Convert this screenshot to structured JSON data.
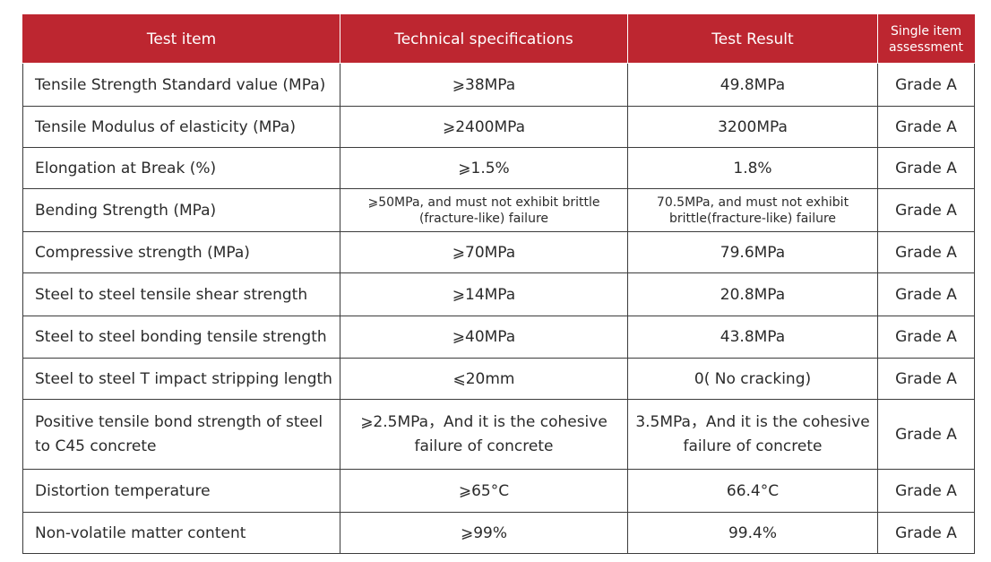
{
  "headers": {
    "test_item": "Test item",
    "technical_specifications": "Technical specifications",
    "test_result": "Test Result",
    "single_item_assessment_line1": "Single item",
    "single_item_assessment_line2": "assessment"
  },
  "rows": [
    {
      "item": "Tensile Strength Standard value (MPa)",
      "spec": "⩾38MPa",
      "result": "49.8MPa",
      "grade": "Grade A"
    },
    {
      "item": "Tensile Modulus of elasticity (MPa)",
      "spec": "⩾2400MPa",
      "result": "3200MPa",
      "grade": "Grade A"
    },
    {
      "item": "Elongation at Break (%)",
      "spec": "⩾1.5%",
      "result": "1.8%",
      "grade": "Grade A"
    },
    {
      "item": "Bending Strength (MPa)",
      "spec_line1": "⩾50MPa, and must not exhibit brittle",
      "spec_line2": "(fracture-like) failure",
      "result_line1": "70.5MPa, and must not exhibit",
      "result_line2": "brittle(fracture-like) failure",
      "grade": "Grade A"
    },
    {
      "item": "Compressive strength (MPa)",
      "spec": "⩾70MPa",
      "result": "79.6MPa",
      "grade": "Grade A"
    },
    {
      "item": "Steel to steel tensile shear strength",
      "spec": "⩾14MPa",
      "result": "20.8MPa",
      "grade": "Grade A"
    },
    {
      "item": "Steel to steel bonding tensile strength",
      "spec": "⩾40MPa",
      "result": "43.8MPa",
      "grade": "Grade A"
    },
    {
      "item": "Steel to steel T impact stripping length",
      "spec": "⩽20mm",
      "result": "0( No cracking)",
      "grade": "Grade A"
    },
    {
      "item_line1": "Positive tensile bond strength of steel",
      "item_line2": "to C45 concrete",
      "spec_line1": "⩾2.5MPa，And it is the cohesive",
      "spec_line2": "failure of concrete",
      "result_line1": "3.5MPa，And it is the cohesive",
      "result_line2": "failure of concrete",
      "grade": "Grade A"
    },
    {
      "item": "Distortion temperature",
      "spec": "⩾65°C",
      "result": "66.4°C",
      "grade": "Grade A"
    },
    {
      "item": "Non-volatile matter content",
      "spec": "⩾99%",
      "result": "99.4%",
      "grade": "Grade A"
    }
  ],
  "colors": {
    "header_background": "#bd2630",
    "header_text": "#ffffff",
    "border": "#3c3c3c",
    "body_text": "#2b2b2b"
  }
}
